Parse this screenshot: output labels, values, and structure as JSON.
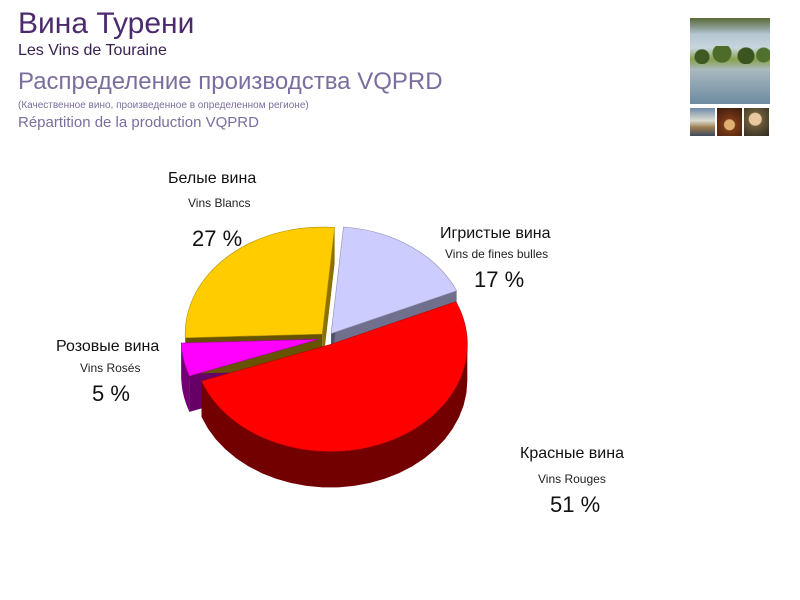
{
  "header": {
    "title": "Вина Турени",
    "subtitle": "Les Vins de Touraine",
    "heading_ru": "Распределение производства VQPRD",
    "note": "(Качественное вино, произведенное в определенном регионе)",
    "heading_fr": "Répartition de la production VQPRD"
  },
  "chart_data": {
    "type": "pie",
    "title": "Распределение производства VQPRD",
    "slices": [
      {
        "label": "Белые вина",
        "label_fr": "Vins Blancs",
        "value": 27,
        "value_label": "27 %",
        "color": "#FFCC00"
      },
      {
        "label": "Игристые вина",
        "label_fr": "Vins de fines bulles",
        "value": 17,
        "value_label": "17 %",
        "color": "#CCCCFF"
      },
      {
        "label": "Красные вина",
        "label_fr": "Vins Rouges",
        "value": 51,
        "value_label": "51 %",
        "color": "#FF0000"
      },
      {
        "label": "Розовые вина",
        "label_fr": "Vins Rosés",
        "value": 5,
        "value_label": "5 %",
        "color": "#FF00FF"
      }
    ],
    "style": "3d-exploded"
  }
}
